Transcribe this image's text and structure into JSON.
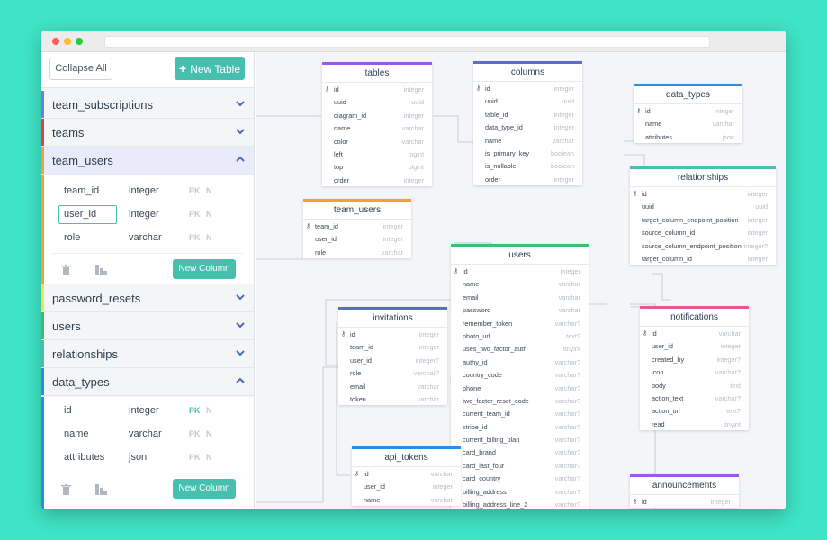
{
  "colors": {
    "background": "#3fe3c5",
    "accent": "#47bfae",
    "table_colors": {
      "tables": "#9b59e6",
      "columns": "#5a6fc4",
      "data_types": "#2b8ee6",
      "relationships": "#47bfae",
      "team_users": "#f2a13a",
      "users": "#3cc070",
      "invitations": "#5a6fc4",
      "notifications": "#e8578f",
      "api_tokens": "#2b8ee6",
      "announcements": "#9b59e6"
    }
  },
  "sidebar": {
    "collapse_label": "Collapse All",
    "new_table_label": "New Table",
    "items": [
      {
        "label": "team_subscriptions",
        "color": "#6d7ee8"
      },
      {
        "label": "teams",
        "color": "#e04040"
      },
      {
        "label": "team_users",
        "color": "#f2a13a"
      },
      {
        "label": "password_resets",
        "color": "#e8e84a"
      },
      {
        "label": "users",
        "color": "#3cc070"
      },
      {
        "label": "relationships",
        "color": "#47bfae"
      },
      {
        "label": "data_types",
        "color": "#2b8ee6"
      }
    ],
    "team_users_columns": [
      {
        "name": "team_id",
        "type": "integer",
        "pk": "PK",
        "null": "N",
        "pk_on": false
      },
      {
        "name": "user_id",
        "type": "integer",
        "pk": "PK",
        "null": "N",
        "pk_on": false
      },
      {
        "name": "role",
        "type": "varchar",
        "pk": "PK",
        "null": "N",
        "pk_on": false
      }
    ],
    "data_types_columns": [
      {
        "name": "id",
        "type": "integer",
        "pk": "PK",
        "null": "N",
        "pk_on": true
      },
      {
        "name": "name",
        "type": "varchar",
        "pk": "PK",
        "null": "N",
        "pk_on": false
      },
      {
        "name": "attributes",
        "type": "json",
        "pk": "PK",
        "null": "N",
        "pk_on": false
      }
    ],
    "new_column_label": "New Column"
  },
  "tables": {
    "tables": {
      "title": "tables",
      "rows": [
        [
          "id",
          "integer",
          1
        ],
        [
          "uuid",
          "uuid",
          0
        ],
        [
          "diagram_id",
          "integer",
          0
        ],
        [
          "name",
          "varchar",
          0
        ],
        [
          "color",
          "varchar",
          0
        ],
        [
          "left",
          "bigint",
          0
        ],
        [
          "top",
          "bigint",
          0
        ],
        [
          "order",
          "integer",
          0
        ]
      ]
    },
    "columns": {
      "title": "columns",
      "rows": [
        [
          "id",
          "integer",
          1
        ],
        [
          "uuid",
          "uuid",
          0
        ],
        [
          "table_id",
          "integer",
          0
        ],
        [
          "data_type_id",
          "integer",
          0
        ],
        [
          "name",
          "varchar",
          0
        ],
        [
          "is_primary_key",
          "boolean",
          0
        ],
        [
          "is_nullable",
          "boolean",
          0
        ],
        [
          "order",
          "integer",
          0
        ]
      ]
    },
    "data_types": {
      "title": "data_types",
      "rows": [
        [
          "id",
          "integer",
          1
        ],
        [
          "name",
          "varchar",
          0
        ],
        [
          "attributes",
          "json",
          0
        ]
      ]
    },
    "relationships": {
      "title": "relationships",
      "rows": [
        [
          "id",
          "integer",
          1
        ],
        [
          "uuid",
          "uuid",
          0
        ],
        [
          "target_column_endpoint_position",
          "integer",
          0
        ],
        [
          "source_column_id",
          "integer",
          0
        ],
        [
          "source_column_endpoint_position",
          "integer?",
          0
        ],
        [
          "target_column_id",
          "integer",
          0
        ]
      ]
    },
    "team_users": {
      "title": "team_users",
      "rows": [
        [
          "team_id",
          "integer",
          1
        ],
        [
          "user_id",
          "integer",
          0
        ],
        [
          "role",
          "varchar",
          0
        ]
      ]
    },
    "users": {
      "title": "users",
      "rows": [
        [
          "id",
          "integer",
          1
        ],
        [
          "name",
          "varchar",
          0
        ],
        [
          "email",
          "varchar",
          0
        ],
        [
          "password",
          "varchar",
          0
        ],
        [
          "remember_token",
          "varchar?",
          0
        ],
        [
          "photo_url",
          "text?",
          0
        ],
        [
          "uses_two_factor_auth",
          "tinyint",
          0
        ],
        [
          "authy_id",
          "varchar?",
          0
        ],
        [
          "country_code",
          "varchar?",
          0
        ],
        [
          "phone",
          "varchar?",
          0
        ],
        [
          "two_factor_reset_code",
          "varchar?",
          0
        ],
        [
          "current_team_id",
          "varchar?",
          0
        ],
        [
          "stripe_id",
          "varchar?",
          0
        ],
        [
          "current_billing_plan",
          "varchar?",
          0
        ],
        [
          "card_brand",
          "varchar?",
          0
        ],
        [
          "card_last_four",
          "varchar?",
          0
        ],
        [
          "card_country",
          "varchar?",
          0
        ],
        [
          "billing_address",
          "varchar?",
          0
        ],
        [
          "billing_address_line_2",
          "varchar?",
          0
        ]
      ]
    },
    "invitations": {
      "title": "invitations",
      "rows": [
        [
          "id",
          "integer",
          1
        ],
        [
          "team_id",
          "integer",
          0
        ],
        [
          "user_id",
          "integer?",
          0
        ],
        [
          "role",
          "varchar?",
          0
        ],
        [
          "email",
          "varchar",
          0
        ],
        [
          "token",
          "varchar",
          0
        ]
      ]
    },
    "notifications": {
      "title": "notifications",
      "rows": [
        [
          "id",
          "varchar",
          1
        ],
        [
          "user_id",
          "integer",
          0
        ],
        [
          "created_by",
          "integer?",
          0
        ],
        [
          "icon",
          "varchar?",
          0
        ],
        [
          "body",
          "text",
          0
        ],
        [
          "action_text",
          "varchar?",
          0
        ],
        [
          "action_url",
          "text?",
          0
        ],
        [
          "read",
          "tinyint",
          0
        ]
      ]
    },
    "api_tokens": {
      "title": "api_tokens",
      "rows": [
        [
          "id",
          "varchar",
          1
        ],
        [
          "user_id",
          "integer",
          0
        ],
        [
          "name",
          "varchar",
          0
        ]
      ]
    },
    "announcements": {
      "title": "announcements",
      "rows": [
        [
          "id",
          "integer",
          1
        ]
      ]
    }
  }
}
